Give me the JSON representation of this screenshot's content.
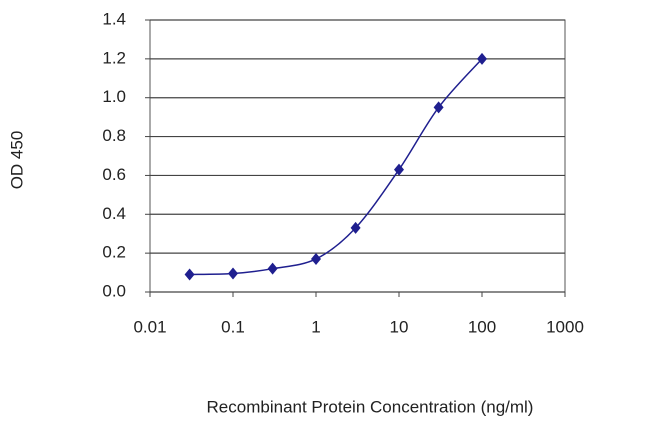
{
  "chart_data": {
    "type": "line",
    "log_x": true,
    "grid": true,
    "xlabel": "Recombinant Protein Concentration (ng/ml)",
    "ylabel": "OD 450",
    "x": [
      0.03,
      0.1,
      0.3,
      1,
      3,
      10,
      30,
      100
    ],
    "series": [
      {
        "color": "#1f1f8f",
        "values": [
          0.09,
          0.095,
          0.12,
          0.17,
          0.33,
          0.63,
          0.95,
          1.2
        ]
      }
    ],
    "xlim": [
      0.01,
      1000
    ],
    "xticks": [
      0.01,
      0.1,
      1,
      10,
      100,
      1000
    ],
    "ylim": [
      0,
      1.4
    ],
    "yticks": [
      {
        "value": 0,
        "label": "0.0"
      },
      0.2,
      0.4,
      0.6,
      0.8,
      {
        "value": 1,
        "label": "1.0"
      },
      1.2,
      1.4
    ]
  }
}
